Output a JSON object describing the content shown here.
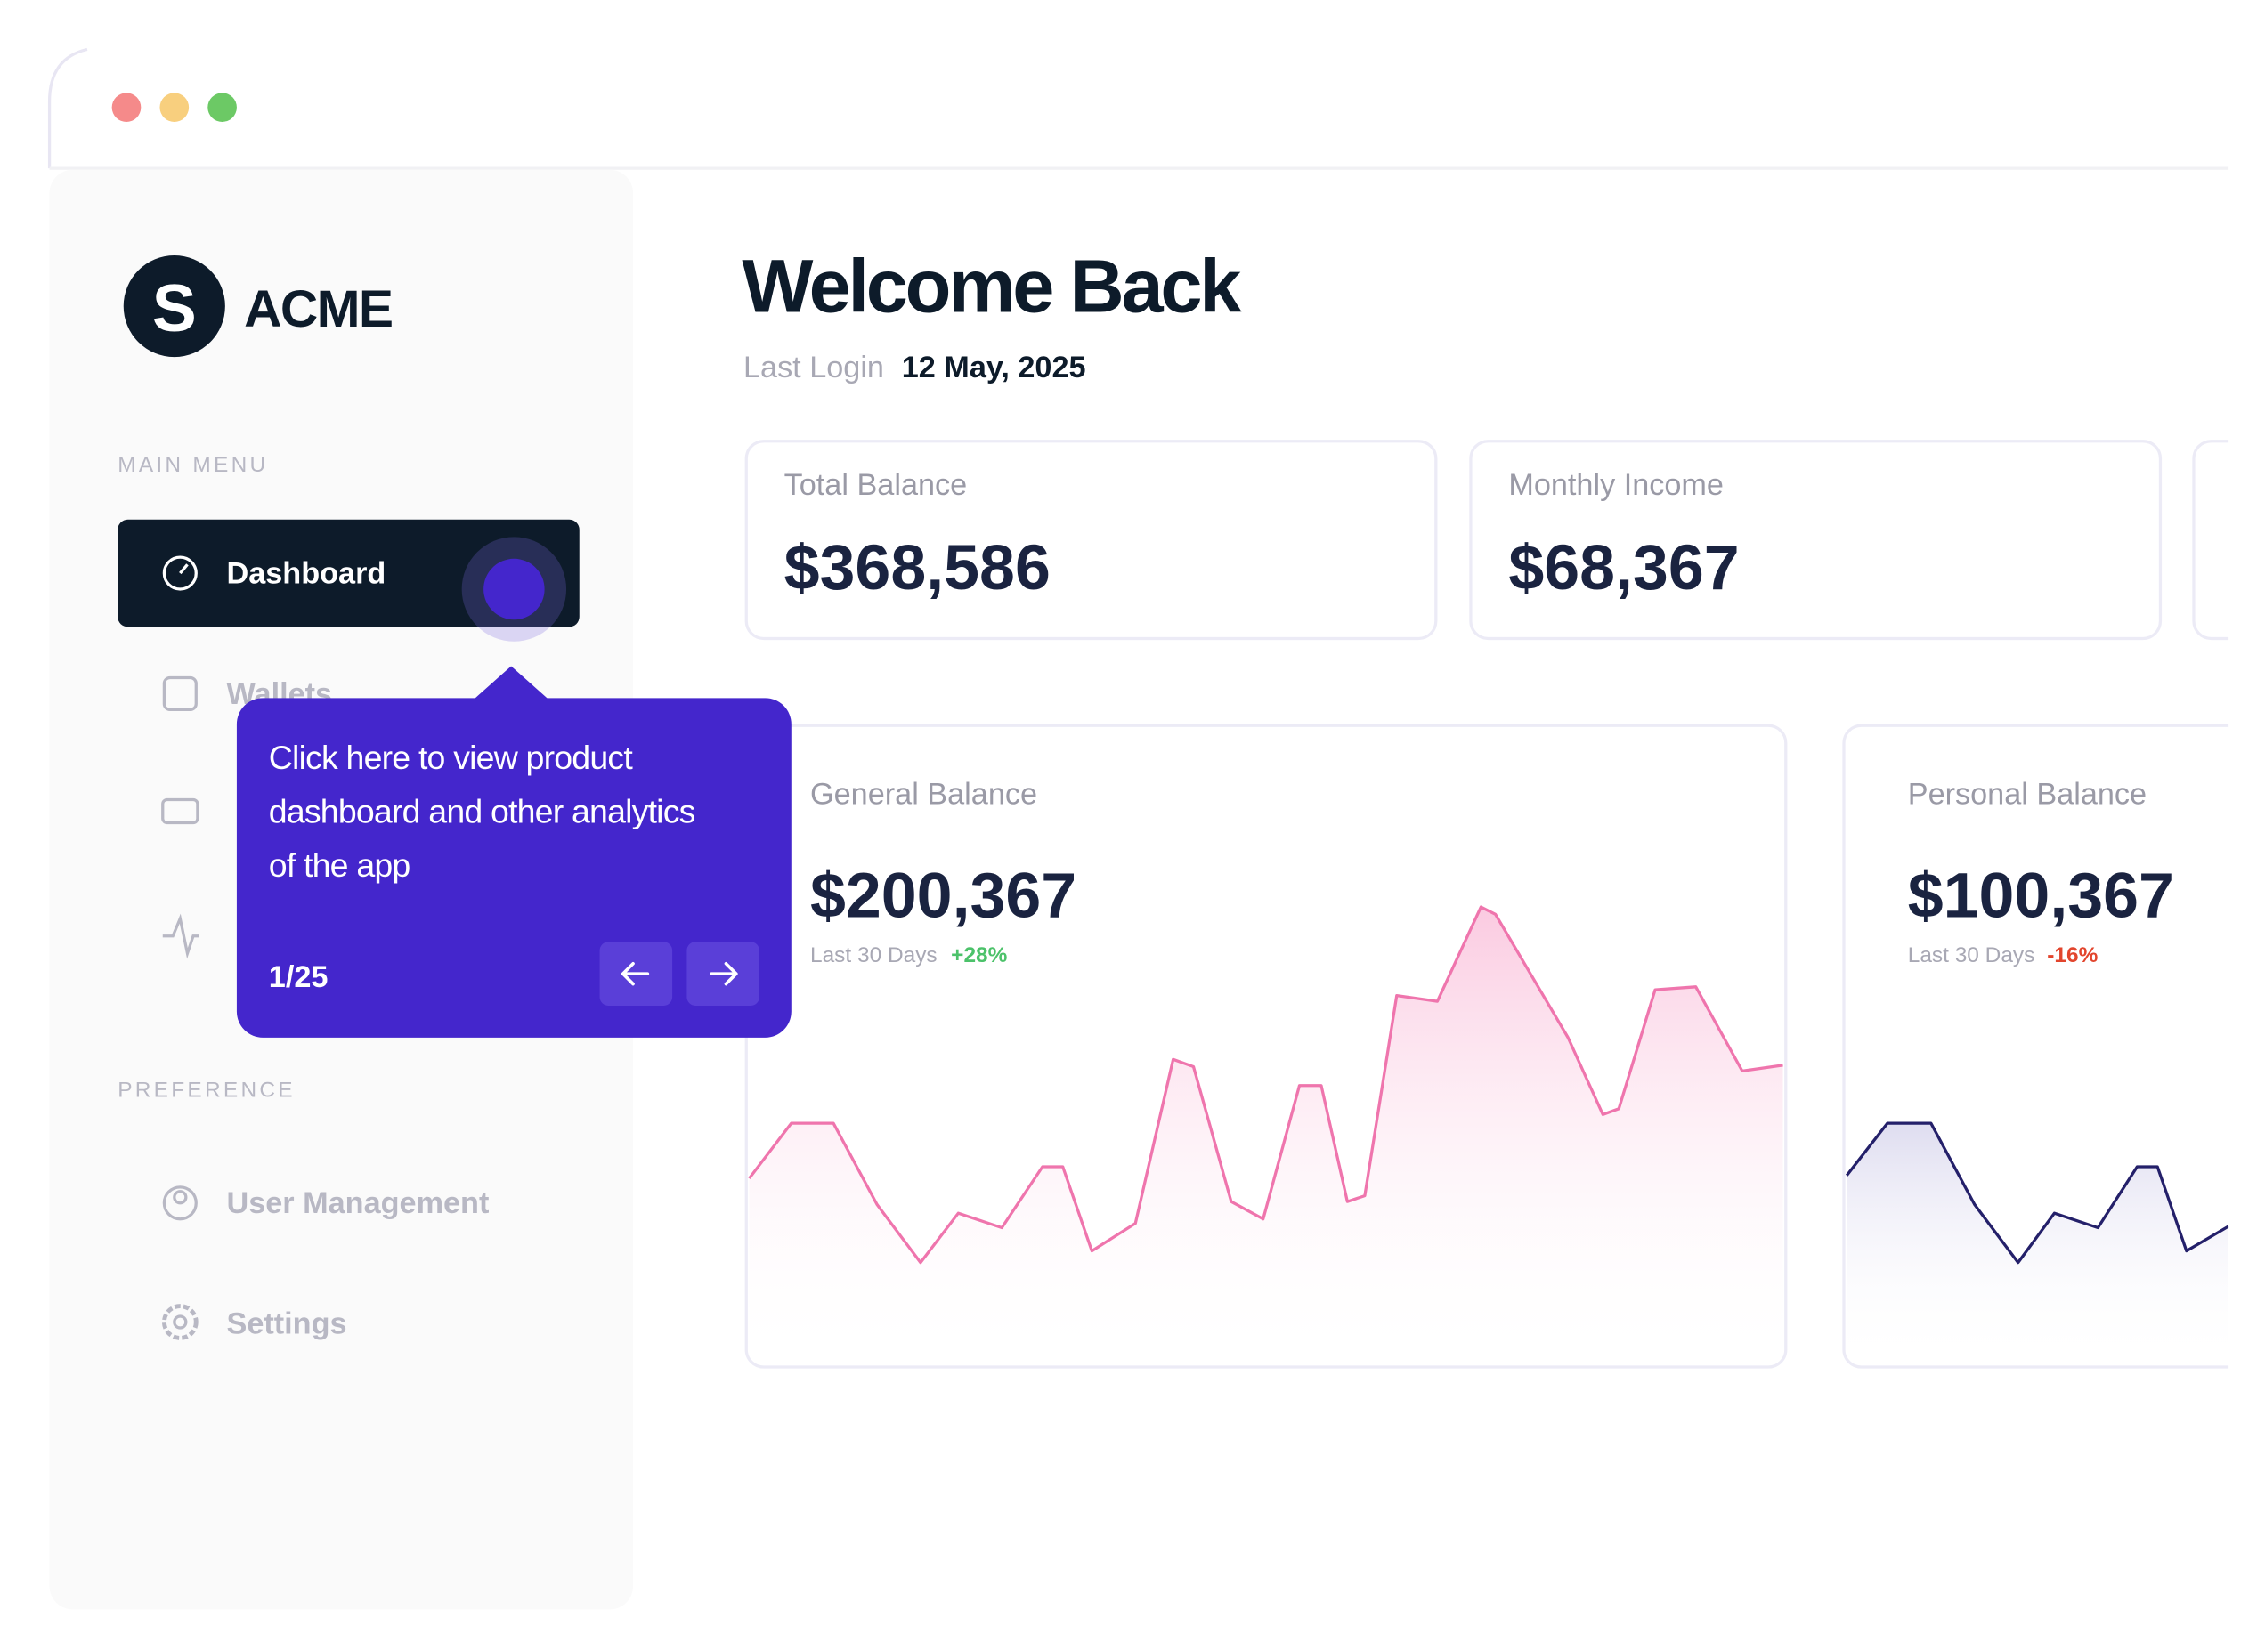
{
  "sidebar": {
    "logo_letter": "S",
    "brand": "ACME",
    "main_menu_label": "MAIN MENU",
    "menu": [
      "Dashboard",
      "Wallets"
    ],
    "preference_label": "PREFERENCE",
    "preference_menu": [
      "User Management",
      "Settings"
    ]
  },
  "tooltip": {
    "lines": [
      "Click here to view product",
      "dashboard and other analytics",
      "of the app"
    ],
    "step": "1/25"
  },
  "header": {
    "title": "Welcome Back",
    "last_login_label": "Last Login",
    "last_login_date": "12 May, 2025"
  },
  "cards": [
    {
      "label": "Total Balance",
      "value": "$368,586"
    },
    {
      "label": "Monthly Income",
      "value": "$68,367"
    }
  ],
  "balances": [
    {
      "label": "General Balance",
      "value": "$200,367",
      "period": "Last 30 Days",
      "change": "+28%"
    },
    {
      "label": "Personal Balance",
      "value": "$100,367",
      "period": "Last 30 Days",
      "change": "-16%"
    }
  ]
}
